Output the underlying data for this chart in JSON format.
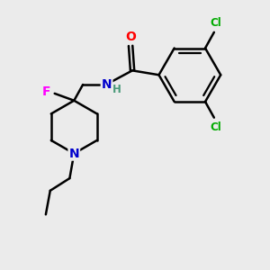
{
  "background_color": "#ebebeb",
  "atom_colors": {
    "C": "#000000",
    "N": "#0000cc",
    "O": "#ff0000",
    "F": "#ff00ff",
    "Cl": "#00aa00",
    "H": "#4a9a7a"
  },
  "bond_color": "#000000",
  "bond_width": 1.8,
  "figsize": [
    3.0,
    3.0
  ],
  "dpi": 100,
  "xlim": [
    0,
    3.0
  ],
  "ylim": [
    0,
    3.0
  ]
}
